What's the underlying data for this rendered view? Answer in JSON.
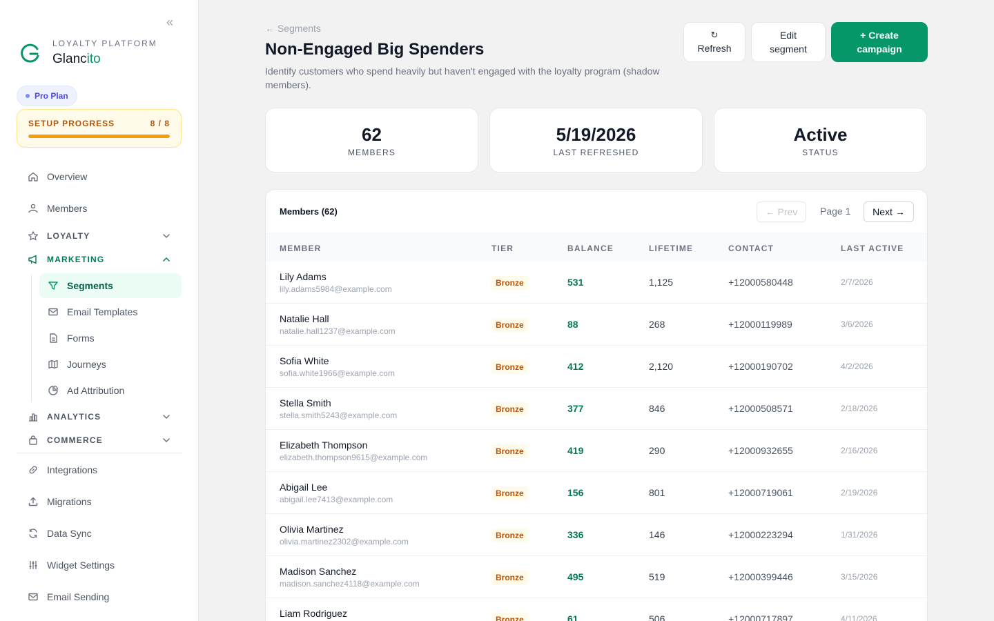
{
  "sidebar": {
    "brand_sub": "LOYALTY PLATFORM",
    "brand_name_main": "Glanc",
    "brand_name_accent": "ito",
    "plan": "Pro Plan",
    "setup": {
      "label": "SETUP PROGRESS",
      "count": "8 / 8",
      "progress": 1.0
    },
    "items_top": [
      {
        "label": "Overview",
        "icon": "home-icon"
      },
      {
        "label": "Members",
        "icon": "members-icon"
      }
    ],
    "groups": {
      "loyalty": "LOYALTY",
      "marketing": "MARKETING",
      "analytics": "ANALYTICS",
      "commerce": "COMMERCE"
    },
    "marketing_items": [
      {
        "label": "Segments",
        "icon": "filter-icon",
        "active": true
      },
      {
        "label": "Email Templates",
        "icon": "mail-icon"
      },
      {
        "label": "Forms",
        "icon": "document-icon"
      },
      {
        "label": "Journeys",
        "icon": "map-icon"
      },
      {
        "label": "Ad Attribution",
        "icon": "pie-chart-icon"
      }
    ],
    "items_bottom": [
      {
        "label": "Integrations",
        "icon": "link-icon"
      },
      {
        "label": "Migrations",
        "icon": "upload-icon"
      },
      {
        "label": "Data Sync",
        "icon": "sync-icon"
      },
      {
        "label": "Widget Settings",
        "icon": "sliders-icon"
      },
      {
        "label": "Email Sending",
        "icon": "mail-icon"
      }
    ]
  },
  "header": {
    "back": "← Segments",
    "title": "Non-Engaged Big Spenders",
    "description": "Identify customers who spend heavily but haven't engaged with the loyalty program (shadow members).",
    "refresh_icon": "↻",
    "refresh_label": "Refresh",
    "edit_label_1": "Edit",
    "edit_label_2": "segment",
    "create_label_1": "+ Create",
    "create_label_2": "campaign"
  },
  "stats": [
    {
      "value": "62",
      "label": "MEMBERS"
    },
    {
      "value": "5/19/2026",
      "label": "LAST REFRESHED"
    },
    {
      "value": "Active",
      "label": "STATUS"
    }
  ],
  "table": {
    "title": "Members (62)",
    "prev": "← Prev",
    "page": "Page 1",
    "next": "Next →",
    "columns": [
      "MEMBER",
      "TIER",
      "BALANCE",
      "LIFETIME",
      "CONTACT",
      "LAST ACTIVE"
    ],
    "rows": [
      {
        "name": "Lily Adams",
        "email": "lily.adams5984@example.com",
        "tier": "Bronze",
        "balance": "531",
        "lifetime": "1,125",
        "contact": "+12000580448",
        "last_active": "2/7/2026"
      },
      {
        "name": "Natalie Hall",
        "email": "natalie.hall1237@example.com",
        "tier": "Bronze",
        "balance": "88",
        "lifetime": "268",
        "contact": "+12000119989",
        "last_active": "3/6/2026"
      },
      {
        "name": "Sofia White",
        "email": "sofia.white1966@example.com",
        "tier": "Bronze",
        "balance": "412",
        "lifetime": "2,120",
        "contact": "+12000190702",
        "last_active": "4/2/2026"
      },
      {
        "name": "Stella Smith",
        "email": "stella.smith5243@example.com",
        "tier": "Bronze",
        "balance": "377",
        "lifetime": "846",
        "contact": "+12000508571",
        "last_active": "2/18/2026"
      },
      {
        "name": "Elizabeth Thompson",
        "email": "elizabeth.thompson9615@example.com",
        "tier": "Bronze",
        "balance": "419",
        "lifetime": "290",
        "contact": "+12000932655",
        "last_active": "2/16/2026"
      },
      {
        "name": "Abigail Lee",
        "email": "abigail.lee7413@example.com",
        "tier": "Bronze",
        "balance": "156",
        "lifetime": "801",
        "contact": "+12000719061",
        "last_active": "2/19/2026"
      },
      {
        "name": "Olivia Martinez",
        "email": "olivia.martinez2302@example.com",
        "tier": "Bronze",
        "balance": "336",
        "lifetime": "146",
        "contact": "+12000223294",
        "last_active": "1/31/2026"
      },
      {
        "name": "Madison Sanchez",
        "email": "madison.sanchez4118@example.com",
        "tier": "Bronze",
        "balance": "495",
        "lifetime": "519",
        "contact": "+12000399446",
        "last_active": "3/15/2026"
      },
      {
        "name": "Liam Rodriguez",
        "email": "",
        "tier": "Bronze",
        "balance": "61",
        "lifetime": "506",
        "contact": "+12000717897",
        "last_active": "4/11/2026"
      }
    ]
  },
  "colors": {
    "accent": "#059669",
    "tier_bronze": "#b45309",
    "setup_bar": "#f59e0b"
  }
}
